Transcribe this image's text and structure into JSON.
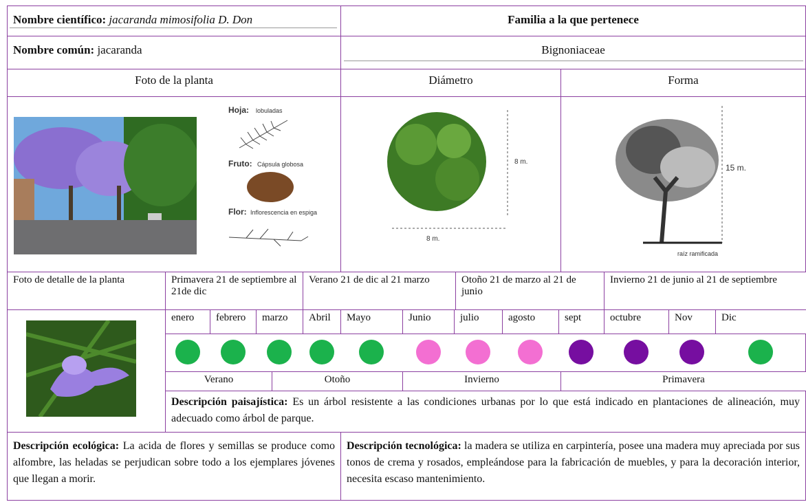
{
  "header": {
    "scientific_name_label": "Nombre científico:",
    "scientific_name": "jacaranda mimosifolia D. Don",
    "family_label": "Familia a la que pertenece",
    "common_name_label": "Nombre común:",
    "common_name": "jacaranda",
    "family": "Bignoniaceae"
  },
  "section_titles": {
    "photo": "Foto de la planta",
    "diameter": "Diámetro",
    "shape": "Forma"
  },
  "illustration_labels": {
    "leaf": "Hoja:",
    "leaf_desc": "lobuladas",
    "fruit": "Fruto:",
    "fruit_desc": "Cápsula globosa",
    "flower": "Flor:",
    "flower_desc": "Inflorescencia en espiga",
    "diameter_v": "8 m.",
    "diameter_h": "8 m.",
    "height": "15 m.",
    "root": "raíz ramificada"
  },
  "detail_photo_label": "Foto de detalle de la planta",
  "seasons": [
    "Primavera 21 de septiembre al 21de dic",
    "Verano 21 de dic al 21 marzo",
    "Otoño 21 de marzo al 21 de junio",
    "Invierno 21 de junio al 21 de septiembre"
  ],
  "months": [
    {
      "name": "enero",
      "color": "#1bb24c"
    },
    {
      "name": "febrero",
      "color": "#1bb24c"
    },
    {
      "name": "marzo",
      "color": "#1bb24c"
    },
    {
      "name": "Abril",
      "color": "#1bb24c"
    },
    {
      "name": "Mayo",
      "color": "#1bb24c"
    },
    {
      "name": "Junio",
      "color": "#f36fd2"
    },
    {
      "name": "julio",
      "color": "#f36fd2"
    },
    {
      "name": "agosto",
      "color": "#f36fd2"
    },
    {
      "name": "sept",
      "color": "#760ea0"
    },
    {
      "name": "octubre",
      "color": "#760ea0"
    },
    {
      "name": "Nov",
      "color": "#760ea0"
    },
    {
      "name": "Dic",
      "color": "#1bb24c"
    }
  ],
  "season_labels": [
    "Verano",
    "Otoño",
    "Invierno",
    "Primavera"
  ],
  "landscape": {
    "label": "Descripción paisajística:",
    "text": "Es un árbol resistente a las condiciones urbanas por lo que está indicado en plantaciones de alineación, muy adecuado como árbol de parque."
  },
  "ecological": {
    "label": "Descripción ecológica:",
    "text": "La acida de flores y semillas se produce como alfombre, las heladas se perjudican sobre todo a los ejemplares jóvenes que llegan a morir."
  },
  "technological": {
    "label": "Descripción tecnológica:",
    "text": "la madera se utiliza en carpintería, posee una madera muy apreciada por sus tonos de crema y rosados, empleándose para la fabricación de muebles, y para la decoración interior, necesita escaso mantenimiento."
  }
}
